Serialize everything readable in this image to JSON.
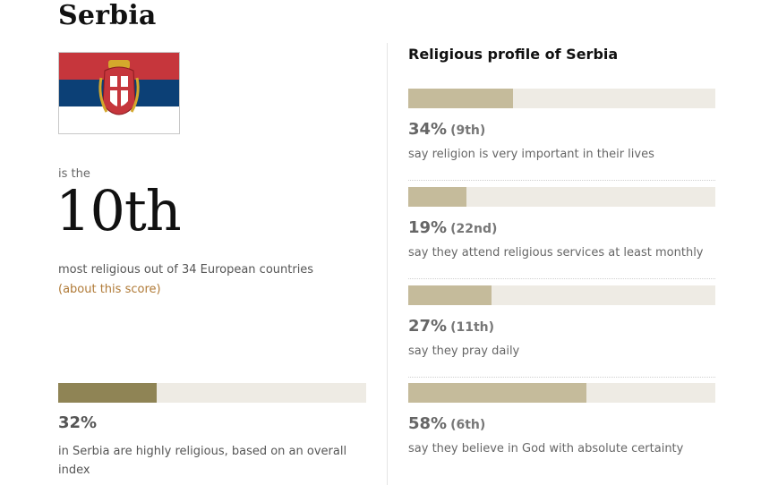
{
  "country": "Serbia",
  "flag": {
    "colors": {
      "red": "#c6363c",
      "blue": "#0c4076",
      "white": "#ffffff"
    }
  },
  "ranking": {
    "prefix": "is the",
    "rank": "10th",
    "description": "most religious out of 34 European countries",
    "link": "(about this score)"
  },
  "overall": {
    "fraction": 0.32,
    "percent": "32%",
    "description": "in Serbia are highly religious, based on an overall index"
  },
  "profile": {
    "title": "Religious profile of Serbia",
    "metrics": [
      {
        "fraction": 0.34,
        "percent": "34%",
        "rank": "(9th)",
        "description": "say religion is very important in their lives"
      },
      {
        "fraction": 0.19,
        "percent": "19%",
        "rank": "(22nd)",
        "description": "say they attend religious services at least monthly"
      },
      {
        "fraction": 0.27,
        "percent": "27%",
        "rank": "(11th)",
        "description": "say they pray daily"
      },
      {
        "fraction": 0.58,
        "percent": "58%",
        "rank": "(6th)",
        "description": "say they believe in God with absolute certainty"
      }
    ]
  },
  "colors": {
    "overall_fill": "#8f8455",
    "metric_fill": "#c5bb9b",
    "bar_track": "#eeebe4",
    "link": "#b07a37"
  }
}
